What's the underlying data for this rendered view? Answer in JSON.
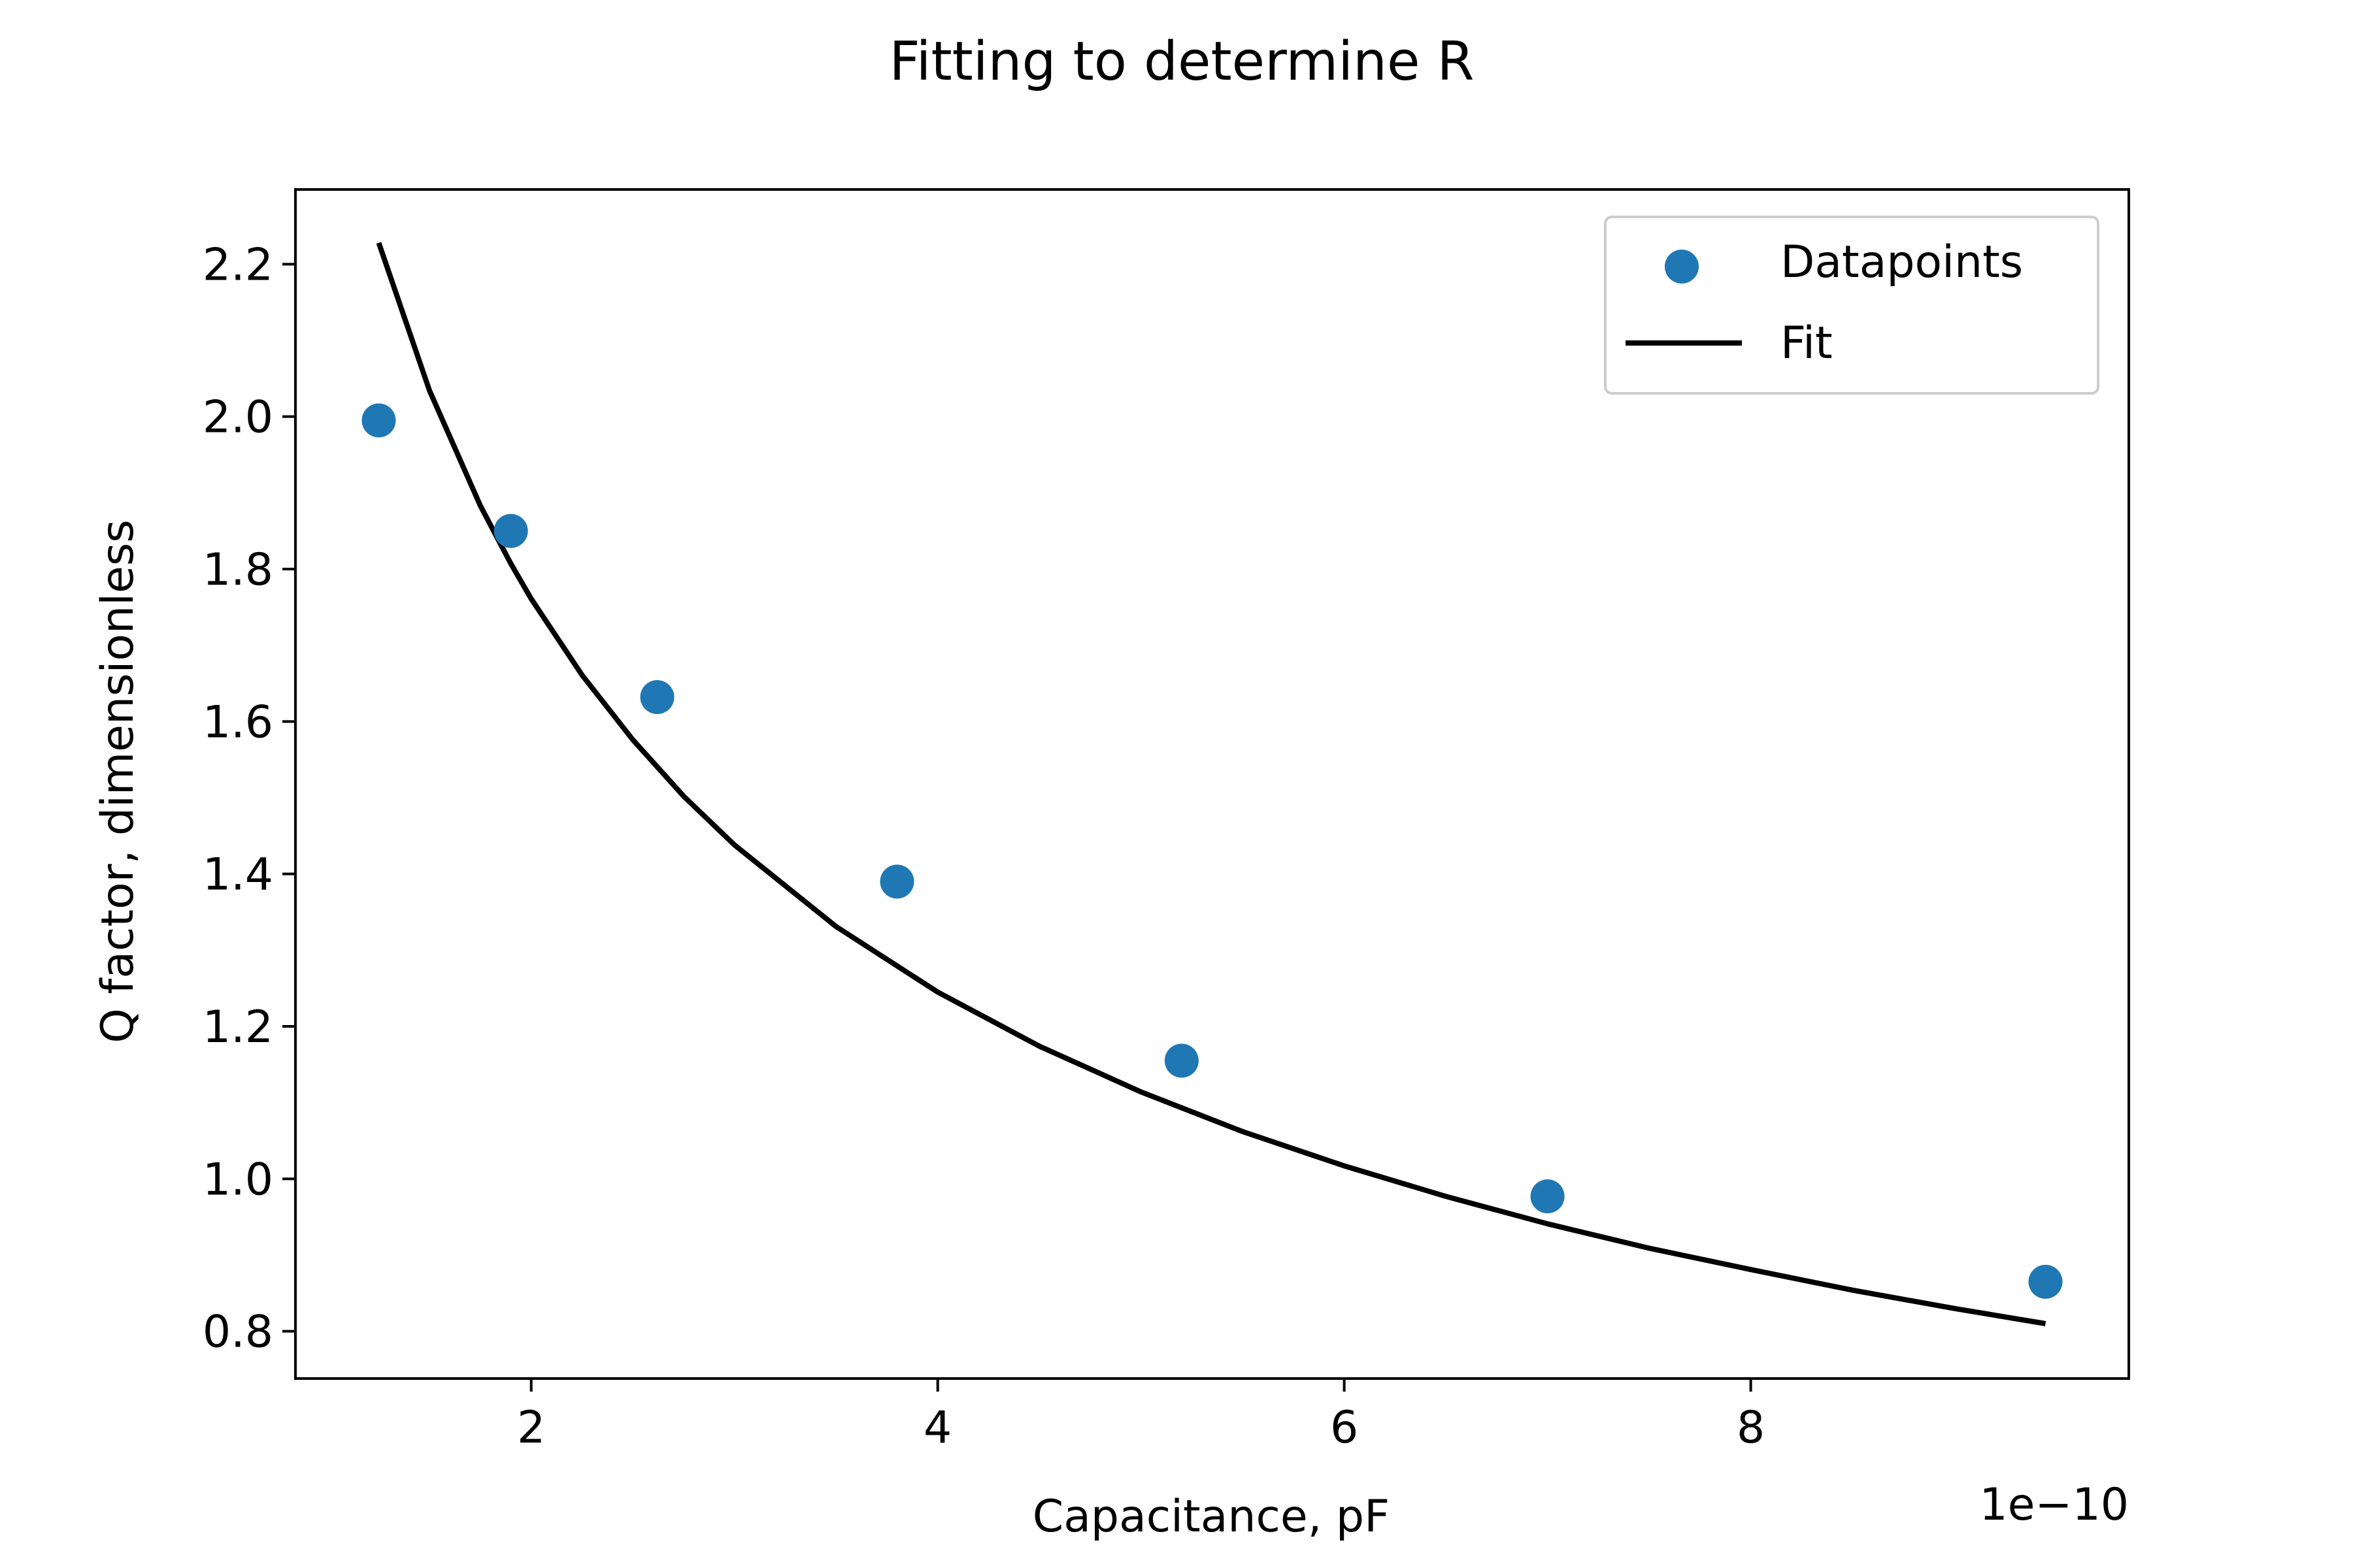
{
  "chart_data": {
    "type": "scatter",
    "title": "Fitting to determine R",
    "xlabel": "Capacitance, pF",
    "ylabel": "Q factor, dimensionless",
    "x_offset_text": "1e−10",
    "xlim": [
      8.4e-11,
      9.86e-10
    ],
    "ylim": [
      0.738,
      2.298
    ],
    "x_ticks": [
      {
        "value": 2e-10,
        "label": "2"
      },
      {
        "value": 4e-10,
        "label": "4"
      },
      {
        "value": 6e-10,
        "label": "6"
      },
      {
        "value": 8e-10,
        "label": "8"
      }
    ],
    "y_ticks": [
      {
        "value": 0.8,
        "label": "0.8"
      },
      {
        "value": 1.0,
        "label": "1.0"
      },
      {
        "value": 1.2,
        "label": "1.2"
      },
      {
        "value": 1.4,
        "label": "1.4"
      },
      {
        "value": 1.6,
        "label": "1.6"
      },
      {
        "value": 1.8,
        "label": "1.8"
      },
      {
        "value": 2.0,
        "label": "2.0"
      },
      {
        "value": 2.2,
        "label": "2.2"
      }
    ],
    "series": [
      {
        "name": "Datapoints",
        "kind": "scatter",
        "color": "#1f77b4",
        "x": [
          1.25e-10,
          1.9e-10,
          2.62e-10,
          3.8e-10,
          5.2e-10,
          7e-10,
          9.45e-10
        ],
        "y": [
          1.995,
          1.85,
          1.632,
          1.39,
          1.155,
          0.977,
          0.865
        ]
      },
      {
        "name": "Fit",
        "kind": "line",
        "color": "#000000",
        "x": [
          1.25e-10,
          1.5e-10,
          1.75e-10,
          1.9e-10,
          2e-10,
          2.25e-10,
          2.5e-10,
          2.75e-10,
          3e-10,
          3.5e-10,
          4e-10,
          4.5e-10,
          5e-10,
          5.5e-10,
          6e-10,
          6.5e-10,
          7e-10,
          7.5e-10,
          8e-10,
          8.5e-10,
          9e-10,
          9.45e-10
        ],
        "y": [
          2.228,
          2.034,
          1.883,
          1.807,
          1.761,
          1.661,
          1.576,
          1.502,
          1.438,
          1.331,
          1.245,
          1.174,
          1.114,
          1.062,
          1.017,
          0.977,
          0.941,
          0.909,
          0.881,
          0.854,
          0.83,
          0.81
        ]
      }
    ],
    "legend": {
      "placement": "top-right",
      "entries": [
        {
          "label": "Datapoints",
          "marker": "circle",
          "color": "#1f77b4"
        },
        {
          "label": "Fit",
          "marker": "line",
          "color": "#000000"
        }
      ]
    },
    "grid": false
  }
}
